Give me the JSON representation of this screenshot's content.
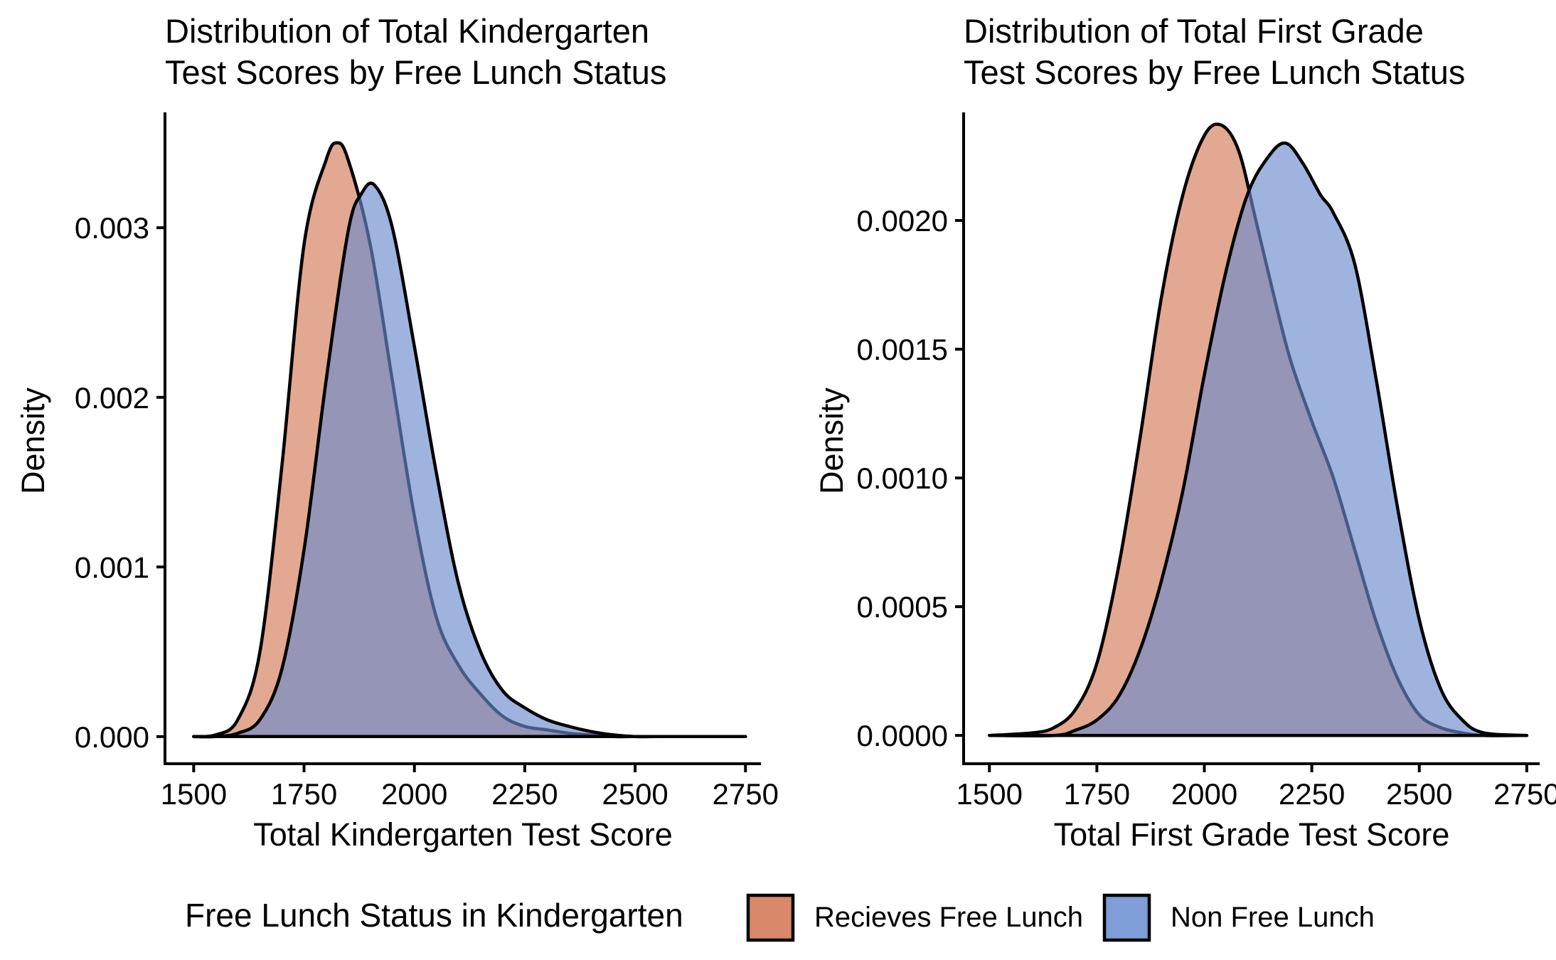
{
  "chart_data": [
    {
      "type": "area",
      "title": [
        "Distribution of Total Kindergarten",
        "Test Scores by Free Lunch Status"
      ],
      "xlabel": "Total Kindergarten Test Score",
      "ylabel": "Density",
      "xlim": [
        1435,
        2785
      ],
      "ylim": [
        -0.00016,
        0.00368
      ],
      "x_ticks": [
        1500,
        1750,
        2000,
        2250,
        2500,
        2750
      ],
      "x_tick_labels": [
        "1500",
        "1750",
        "2000",
        "2250",
        "2500",
        "2750"
      ],
      "y_ticks": [
        0,
        0.001,
        0.002,
        0.003
      ],
      "y_tick_labels": [
        "0.000",
        "0.001",
        "0.002",
        "0.003"
      ],
      "grid": false,
      "series": [
        {
          "name": "Recieves Free Lunch",
          "color": "#D9886A",
          "x": [
            1500,
            1550,
            1600,
            1650,
            1700,
            1750,
            1800,
            1825,
            1850,
            1900,
            1950,
            2000,
            2050,
            2100,
            2150,
            2200,
            2250,
            2300,
            2350,
            2400,
            2450,
            2500,
            2600,
            2750
          ],
          "y": [
            0.0,
            1e-05,
            0.0001,
            0.0005,
            0.0016,
            0.0029,
            0.0034,
            0.0035,
            0.0034,
            0.0029,
            0.0021,
            0.0013,
            0.0007,
            0.00042,
            0.00025,
            0.00012,
            6e-05,
            4e-05,
            2e-05,
            1e-05,
            0.0,
            0.0,
            0.0,
            0.0
          ]
        },
        {
          "name": "Non Free Lunch",
          "color": "#7F9DD6",
          "x": [
            1500,
            1550,
            1600,
            1650,
            1700,
            1750,
            1800,
            1850,
            1880,
            1910,
            1950,
            2000,
            2050,
            2100,
            2150,
            2200,
            2250,
            2300,
            2350,
            2400,
            2450,
            2500,
            2550,
            2600,
            2750
          ],
          "y": [
            0.0,
            0.0,
            2e-05,
            0.0001,
            0.0004,
            0.0011,
            0.0021,
            0.00298,
            0.0032,
            0.00325,
            0.003,
            0.0023,
            0.00155,
            0.0009,
            0.0005,
            0.00027,
            0.00017,
            0.0001,
            6e-05,
            3e-05,
            1e-05,
            0.0,
            0.0,
            0.0,
            0.0
          ]
        }
      ]
    },
    {
      "type": "area",
      "title": [
        "Distribution of Total First Grade",
        "Test Scores by Free Lunch Status"
      ],
      "xlabel": "Total First Grade Test Score",
      "ylabel": "Density",
      "xlim": [
        1440,
        2780
      ],
      "ylim": [
        -0.00011,
        0.00242
      ],
      "x_ticks": [
        1500,
        1750,
        2000,
        2250,
        2500,
        2750
      ],
      "x_tick_labels": [
        "1500",
        "1750",
        "2000",
        "2250",
        "2500",
        "2750"
      ],
      "y_ticks": [
        0,
        0.0005,
        0.001,
        0.0015,
        0.002
      ],
      "y_tick_labels": [
        "0.0000",
        "0.0005",
        "0.0010",
        "0.0015",
        "0.0020"
      ],
      "grid": false,
      "series": [
        {
          "name": "Recieves Free Lunch",
          "color": "#D9886A",
          "x": [
            1500,
            1600,
            1650,
            1700,
            1750,
            1800,
            1850,
            1900,
            1950,
            2000,
            2040,
            2080,
            2120,
            2160,
            2200,
            2250,
            2300,
            2350,
            2400,
            2450,
            2500,
            2550,
            2600,
            2650,
            2750
          ],
          "y": [
            0.0,
            1e-05,
            3e-05,
            0.0001,
            0.00028,
            0.00065,
            0.00115,
            0.0017,
            0.0021,
            0.00233,
            0.00237,
            0.00227,
            0.002,
            0.00172,
            0.00146,
            0.00122,
            0.001,
            0.00072,
            0.00044,
            0.00022,
            8e-05,
            3e-05,
            1e-05,
            0.0,
            0.0
          ]
        },
        {
          "name": "Non Free Lunch",
          "color": "#7F9DD6",
          "x": [
            1500,
            1650,
            1700,
            1750,
            1800,
            1850,
            1900,
            1950,
            2000,
            2050,
            2100,
            2150,
            2190,
            2230,
            2270,
            2300,
            2350,
            2400,
            2450,
            2500,
            2550,
            2600,
            2650,
            2750
          ],
          "y": [
            0.0,
            0.0,
            2e-05,
            6e-05,
            0.00015,
            0.00033,
            0.0006,
            0.00095,
            0.0014,
            0.0018,
            0.0021,
            0.00225,
            0.0023,
            0.00222,
            0.0021,
            0.00203,
            0.00183,
            0.00138,
            0.00088,
            0.00045,
            0.00018,
            6e-05,
            1e-05,
            0.0
          ]
        }
      ]
    }
  ],
  "legend": {
    "title": "Free Lunch Status in Kindergarten",
    "placement": "bottom",
    "items": [
      {
        "label": "Recieves Free Lunch",
        "color": "#D9886A"
      },
      {
        "label": "Non Free Lunch",
        "color": "#7F9DD6"
      }
    ]
  }
}
